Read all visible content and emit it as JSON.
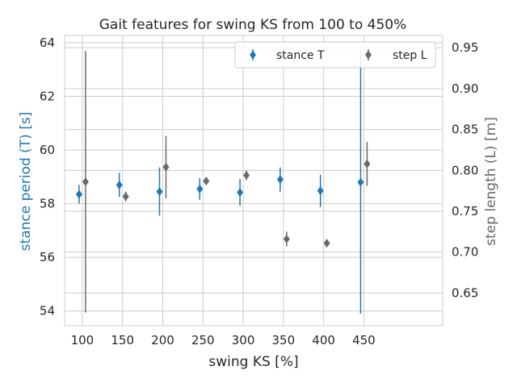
{
  "chart_data": {
    "type": "scatter",
    "title": "Gait features for swing KS from 100 to 450%",
    "xlabel": "swing KS [%]",
    "ylabel_left": "stance period (T) [s]",
    "ylabel_right": "step length (L) [m]",
    "xlim": [
      78,
      548
    ],
    "ylim_left": [
      53.45,
      64.27
    ],
    "ylim_right": [
      0.61,
      0.965
    ],
    "xticks": [
      "100",
      "150",
      "200",
      "250",
      "300",
      "350",
      "400",
      "450"
    ],
    "yticks_left": [
      "54",
      "56",
      "58",
      "60",
      "62",
      "64"
    ],
    "yticks_right": [
      "0.65",
      "0.70",
      "0.75",
      "0.80",
      "0.85",
      "0.90",
      "0.95"
    ],
    "grid": true,
    "legend_position": "top-right",
    "colors": {
      "left": "#1f77b4",
      "right": "#696969",
      "grid": "#cccccc"
    },
    "series": [
      {
        "name": "stance T",
        "axis": "left",
        "marker": "diamond",
        "x": [
          96,
          146,
          196,
          246,
          296,
          346,
          396,
          446
        ],
        "y": [
          58.35,
          58.7,
          58.45,
          58.55,
          58.42,
          58.9,
          58.48,
          58.8
        ],
        "err": [
          0.35,
          0.45,
          0.9,
          0.4,
          0.5,
          0.45,
          0.6,
          4.9
        ]
      },
      {
        "name": "step L",
        "axis": "right",
        "marker": "diamond",
        "x": [
          104,
          154,
          204,
          254,
          304,
          354,
          404,
          454
        ],
        "y": [
          0.786,
          0.768,
          0.804,
          0.787,
          0.794,
          0.716,
          0.711,
          0.808
        ],
        "err": [
          0.16,
          0.006,
          0.038,
          0.003,
          0.006,
          0.009,
          0.002,
          0.027
        ]
      }
    ]
  }
}
